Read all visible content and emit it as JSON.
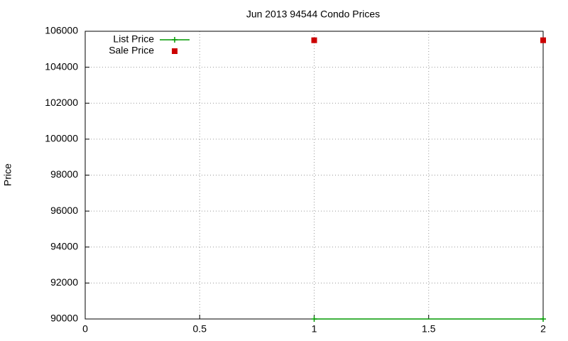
{
  "chart_data": {
    "type": "scatter",
    "title": "Jun 2013 94544 Condo Prices",
    "y_label": "Price",
    "x": [
      1,
      2
    ],
    "series": [
      {
        "name": "List Price",
        "color": "#009900",
        "style": "linespoints",
        "values": [
          90000,
          90000
        ]
      },
      {
        "name": "Sale Price",
        "color": "#cc0000",
        "style": "points",
        "values": [
          105500,
          105500
        ]
      }
    ],
    "xlim": [
      0,
      2
    ],
    "xticks": [
      0,
      0.5,
      1,
      1.5,
      2
    ],
    "ylim": [
      90000,
      106000
    ],
    "yticks": [
      90000,
      92000,
      94000,
      96000,
      98000,
      100000,
      102000,
      104000,
      106000
    ],
    "grid": true,
    "legend": "top-left"
  }
}
